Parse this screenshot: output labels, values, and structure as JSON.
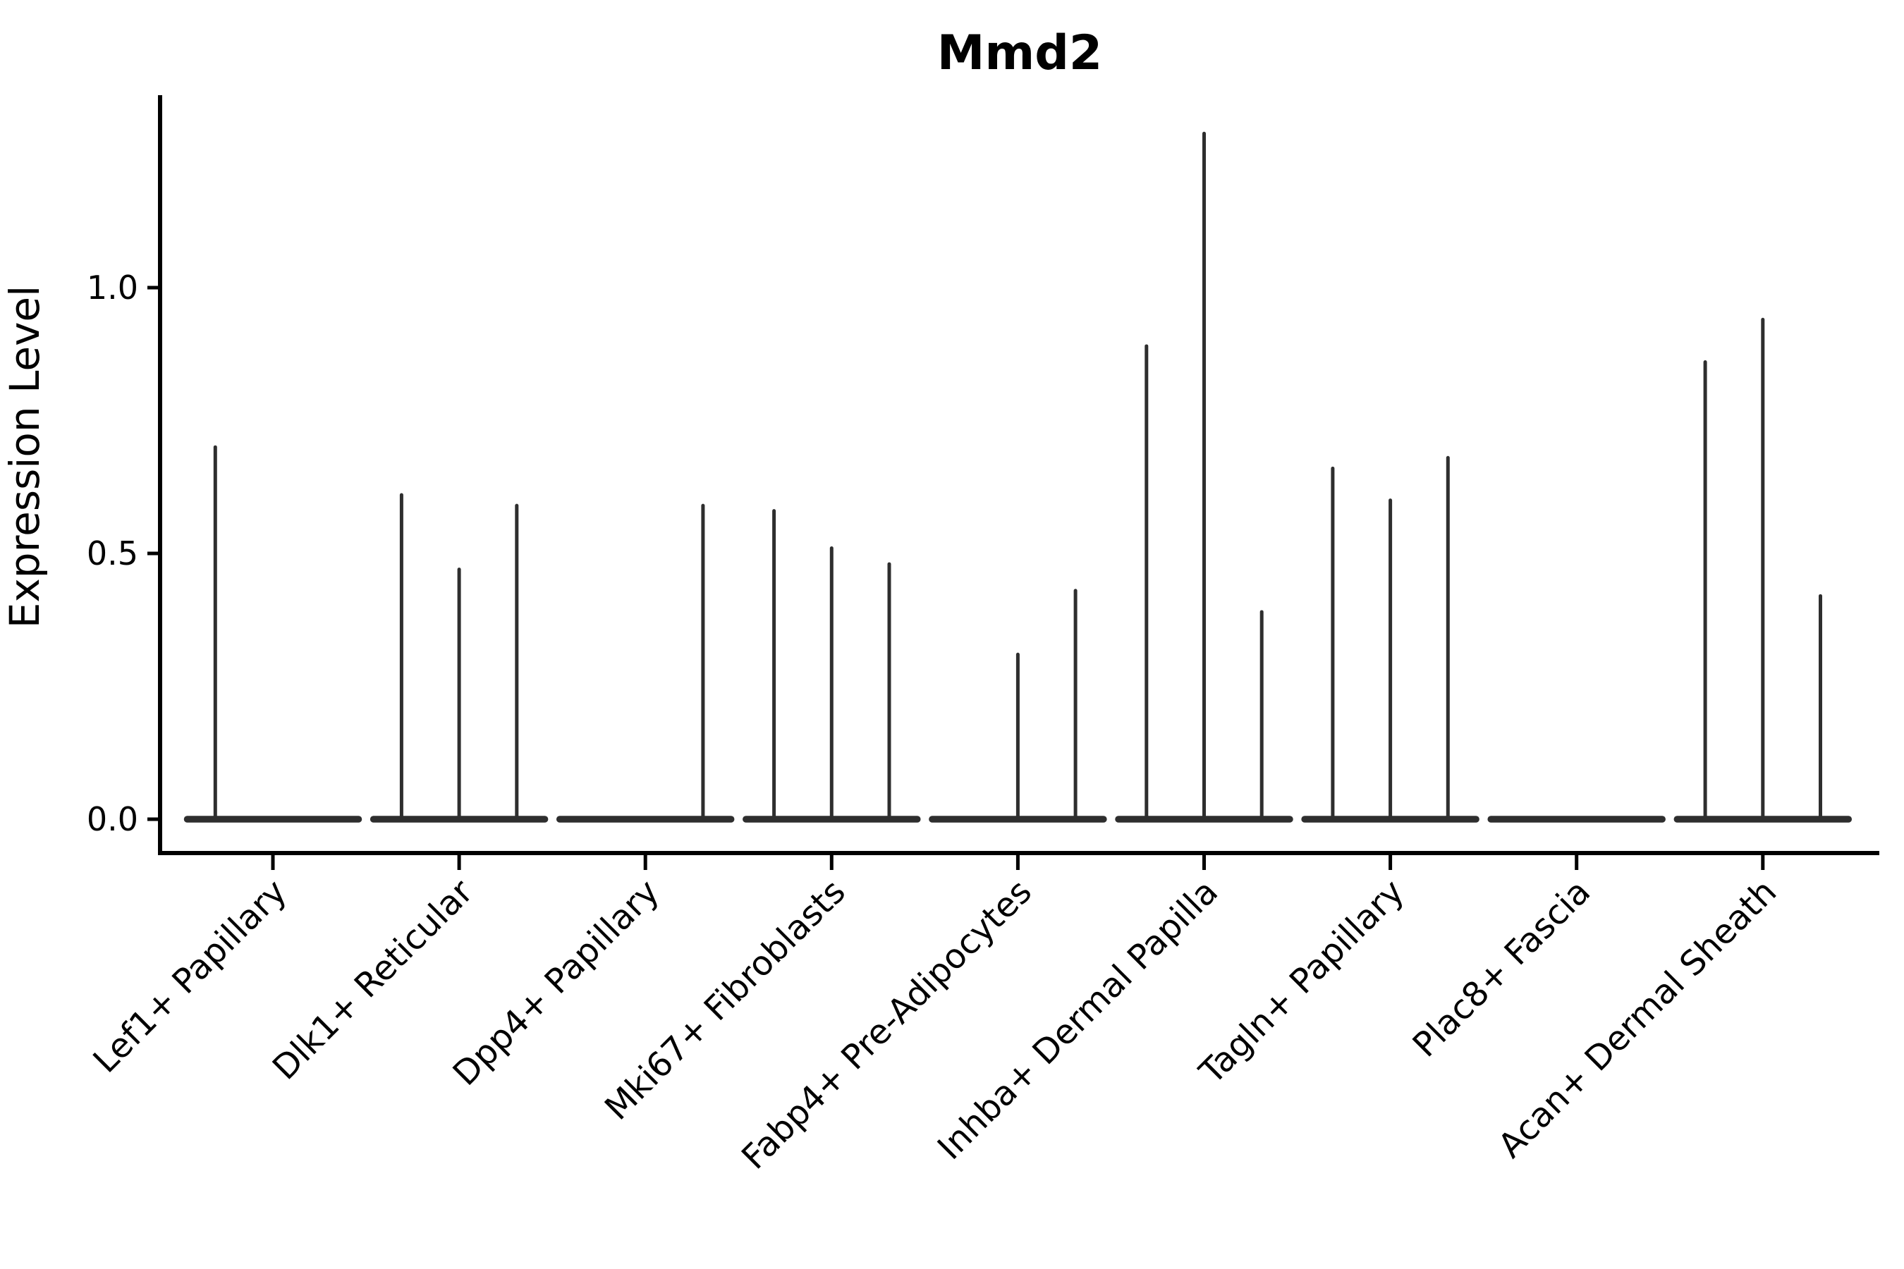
{
  "chart_data": {
    "type": "violin",
    "title": "Mmd2",
    "xlabel": "",
    "ylabel": "Expression Level",
    "ylim": [
      -0.065,
      1.36
    ],
    "yticks": [
      0.0,
      0.5,
      1.0
    ],
    "ytick_labels": [
      "0.0",
      "0.5",
      "1.0"
    ],
    "grid": false,
    "legend": "none",
    "violin_color": "#2e2e2e",
    "axis_color": "#000000",
    "background_color": "#ffffff",
    "splits_per_category": 3,
    "categories": [
      "Lef1+ Papillary",
      "Dlk1+ Reticular",
      "Dpp4+ Papillary",
      "Mki67+ Fibroblasts",
      "Fabp4+ Pre-Adipocytes",
      "Inhba+ Dermal Papilla",
      "Tagln+ Papillary",
      "Plac8+ Fascia",
      "Acan+ Dermal Sheath"
    ],
    "series": [
      {
        "category": "Lef1+ Papillary",
        "baseline": 0.0,
        "spikes": [
          {
            "slot": 0,
            "max": 0.7
          }
        ]
      },
      {
        "category": "Dlk1+ Reticular",
        "baseline": 0.0,
        "spikes": [
          {
            "slot": 0,
            "max": 0.61
          },
          {
            "slot": 1,
            "max": 0.47
          },
          {
            "slot": 2,
            "max": 0.59
          }
        ]
      },
      {
        "category": "Dpp4+ Papillary",
        "baseline": 0.0,
        "spikes": [
          {
            "slot": 2,
            "max": 0.59
          }
        ]
      },
      {
        "category": "Mki67+ Fibroblasts",
        "baseline": 0.0,
        "spikes": [
          {
            "slot": 0,
            "max": 0.58
          },
          {
            "slot": 1,
            "max": 0.51
          },
          {
            "slot": 2,
            "max": 0.48
          }
        ]
      },
      {
        "category": "Fabp4+ Pre-Adipocytes",
        "baseline": 0.0,
        "spikes": [
          {
            "slot": 1,
            "max": 0.31
          },
          {
            "slot": 2,
            "max": 0.43
          }
        ]
      },
      {
        "category": "Inhba+ Dermal Papilla",
        "baseline": 0.0,
        "spikes": [
          {
            "slot": 0,
            "max": 0.89
          },
          {
            "slot": 1,
            "max": 1.29
          },
          {
            "slot": 2,
            "max": 0.39
          }
        ]
      },
      {
        "category": "Tagln+ Papillary",
        "baseline": 0.0,
        "spikes": [
          {
            "slot": 0,
            "max": 0.66
          },
          {
            "slot": 1,
            "max": 0.6
          },
          {
            "slot": 2,
            "max": 0.68
          }
        ]
      },
      {
        "category": "Plac8+ Fascia",
        "baseline": 0.0,
        "spikes": []
      },
      {
        "category": "Acan+ Dermal Sheath",
        "baseline": 0.0,
        "spikes": [
          {
            "slot": 0,
            "max": 0.86
          },
          {
            "slot": 1,
            "max": 0.94
          },
          {
            "slot": 2,
            "max": 0.42
          }
        ]
      }
    ]
  }
}
